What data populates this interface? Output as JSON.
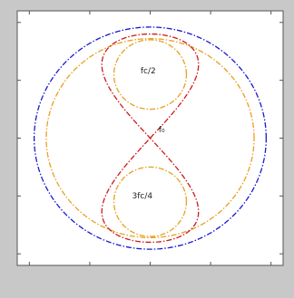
{
  "chart_data": {
    "type": "line",
    "title": "",
    "xlabel": "",
    "ylabel": "",
    "xlim": [
      -1.1,
      1.1
    ],
    "ylim": [
      -1.1,
      1.1
    ],
    "grid": false,
    "legend": "none",
    "x_ticks": [
      -1,
      -0.5,
      0,
      0.5,
      1
    ],
    "y_ticks": [
      -1,
      -0.5,
      0,
      0.5,
      1
    ],
    "series": [
      {
        "color": "#1a1acc",
        "style": "dash-dot",
        "shape": "circle",
        "center": [
          0,
          0
        ],
        "radius": 0.96
      },
      {
        "color": "#e8a020",
        "style": "dash-dot",
        "shape": "circle",
        "center": [
          0,
          0
        ],
        "radius": 0.86
      },
      {
        "color": "#e8a020",
        "style": "dash-dot",
        "shape": "circle",
        "center": [
          0,
          0.55
        ],
        "radius": 0.3
      },
      {
        "color": "#e8a020",
        "style": "dash-dot",
        "shape": "circle",
        "center": [
          0,
          -0.55
        ],
        "radius": 0.3
      },
      {
        "color": "#cc1a1a",
        "style": "dash-dot",
        "shape": "figure-eight",
        "center": [
          0,
          0
        ],
        "half_width": 0.4,
        "half_height": 0.9
      }
    ],
    "annotations": [
      {
        "text": "fc/2",
        "x": -0.08,
        "y": 0.56
      },
      {
        "text": "f₀",
        "x": 0.07,
        "y": 0.05
      },
      {
        "text": "3fc/4",
        "x": -0.15,
        "y": -0.52
      }
    ]
  }
}
